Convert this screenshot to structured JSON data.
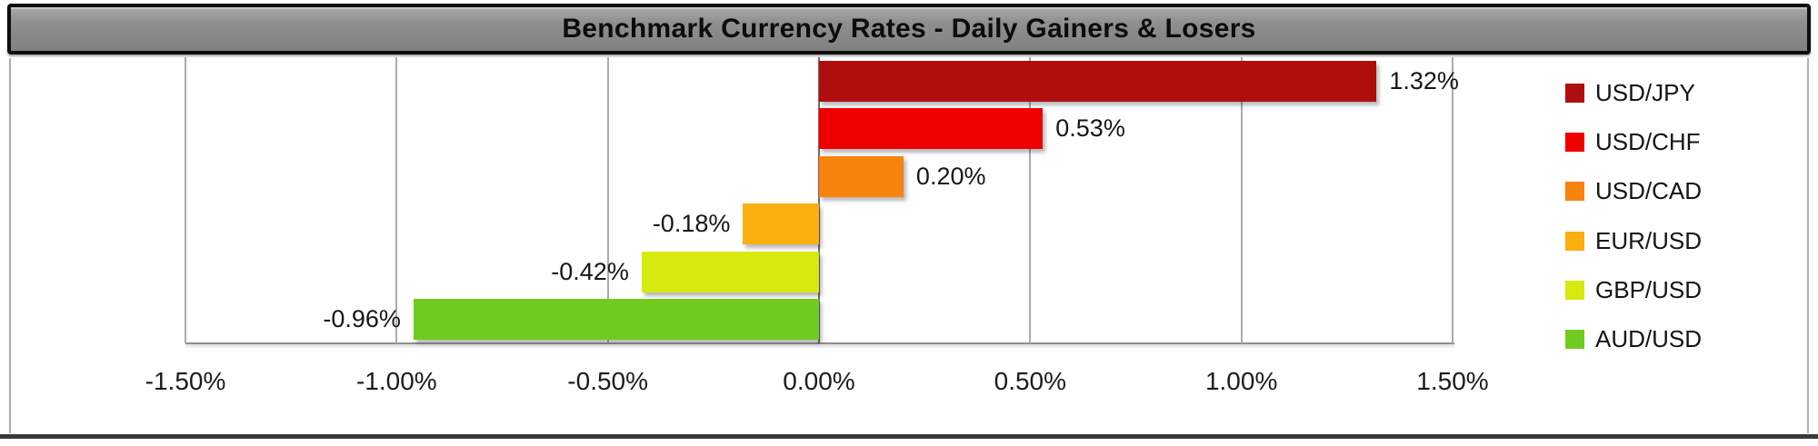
{
  "chart_data": {
    "type": "bar",
    "orientation": "horizontal",
    "title": "Benchmark Currency Rates - Daily Gainers & Losers",
    "categories": [
      "USD/JPY",
      "USD/CHF",
      "USD/CAD",
      "EUR/USD",
      "GBP/USD",
      "AUD/USD"
    ],
    "values": [
      1.32,
      0.53,
      0.2,
      -0.18,
      -0.42,
      -0.96
    ],
    "data_labels": [
      "1.32%",
      "0.53%",
      "0.20%",
      "-0.18%",
      "-0.42%",
      "-0.96%"
    ],
    "colors": [
      "#b00e0e",
      "#ee0000",
      "#f7820e",
      "#fbb00f",
      "#d7e90f",
      "#70cb20"
    ],
    "xlim": [
      -1.5,
      1.5
    ],
    "x_ticks": [
      -1.5,
      -1.0,
      -0.5,
      0,
      0.5,
      1.0,
      1.5
    ],
    "x_tick_labels": [
      "-1.50%",
      "-1.00%",
      "-0.50%",
      "0.00%",
      "0.50%",
      "1.00%",
      "1.50%"
    ],
    "grid": "vertical",
    "legend_position": "right"
  },
  "style_colors": {
    "title_bar_background": "#8f8f8f",
    "title_bar_border": "#0f0f0f",
    "gridline": "#ababab",
    "zero_line": "#6e6e6e",
    "axis_line": "#8f8f8f",
    "text": "#161616"
  }
}
